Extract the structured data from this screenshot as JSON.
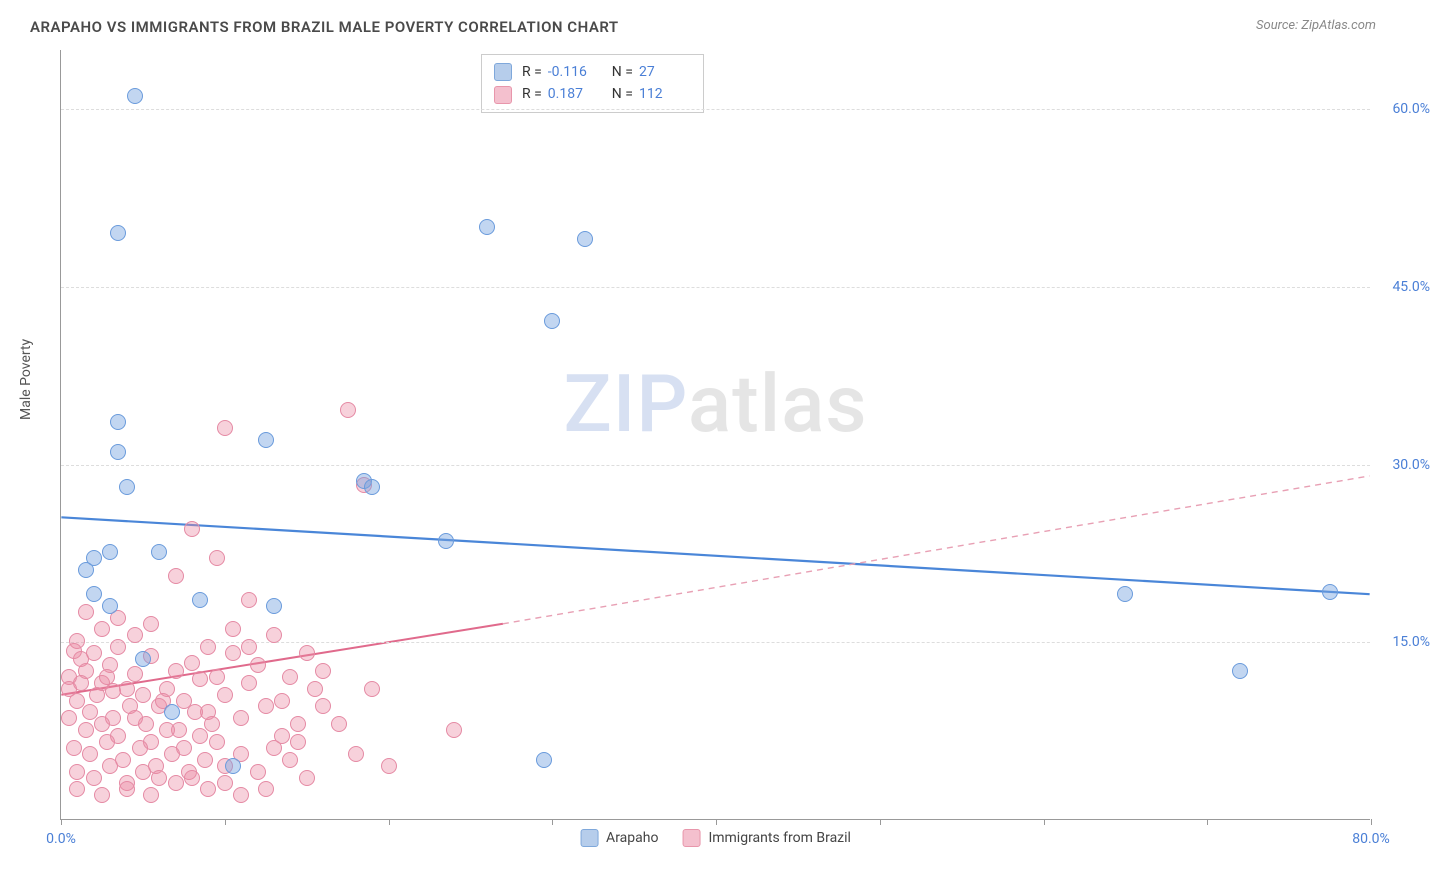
{
  "title": "ARAPAHO VS IMMIGRANTS FROM BRAZIL MALE POVERTY CORRELATION CHART",
  "source": "Source: ZipAtlas.com",
  "y_axis_label": "Male Poverty",
  "watermark_a": "ZIP",
  "watermark_b": "atlas",
  "x_axis": {
    "min": 0,
    "max": 80,
    "label_min": "0.0%",
    "label_max": "80.0%",
    "tick_positions": [
      0,
      10,
      20,
      30,
      40,
      50,
      60,
      70,
      80
    ]
  },
  "y_axis": {
    "min": 0,
    "max": 65,
    "ticks": [
      {
        "v": 15,
        "label": "15.0%"
      },
      {
        "v": 30,
        "label": "30.0%"
      },
      {
        "v": 45,
        "label": "45.0%"
      },
      {
        "v": 60,
        "label": "60.0%"
      }
    ]
  },
  "series": {
    "arapaho": {
      "label": "Arapaho",
      "color_fill": "rgba(120,165,225,0.45)",
      "color_stroke": "#6a9bdc",
      "swatch_fill": "#b6cdeb",
      "swatch_stroke": "#7fa8db",
      "marker_radius": 8,
      "R": "-0.116",
      "N": "27",
      "trend": {
        "x1": 0,
        "y1": 25.5,
        "x2": 80,
        "y2": 19.0,
        "stroke": "#4a86d8",
        "width": 2.2,
        "dash": ""
      },
      "points": [
        [
          4.5,
          61.0
        ],
        [
          3.5,
          49.5
        ],
        [
          26.0,
          50.0
        ],
        [
          32.0,
          49.0
        ],
        [
          30.0,
          42.0
        ],
        [
          3.5,
          33.5
        ],
        [
          3.5,
          31.0
        ],
        [
          12.5,
          32.0
        ],
        [
          18.5,
          28.5
        ],
        [
          19.0,
          28.0
        ],
        [
          4.0,
          28.0
        ],
        [
          2.0,
          22.0
        ],
        [
          3.0,
          22.5
        ],
        [
          1.5,
          21.0
        ],
        [
          6.0,
          22.5
        ],
        [
          23.5,
          23.5
        ],
        [
          2.0,
          19.0
        ],
        [
          3.0,
          18.0
        ],
        [
          8.5,
          18.5
        ],
        [
          13.0,
          18.0
        ],
        [
          5.0,
          13.5
        ],
        [
          6.8,
          9.0
        ],
        [
          10.5,
          4.5
        ],
        [
          65.0,
          19.0
        ],
        [
          77.5,
          19.2
        ],
        [
          72.0,
          12.5
        ],
        [
          29.5,
          5.0
        ]
      ]
    },
    "brazil": {
      "label": "Immigrants from Brazil",
      "color_fill": "rgba(235,140,165,0.40)",
      "color_stroke": "#e58aa4",
      "swatch_fill": "#f4c0ce",
      "swatch_stroke": "#e896ab",
      "marker_radius": 8,
      "R": "0.187",
      "N": "112",
      "trend_solid": {
        "x1": 0,
        "y1": 10.5,
        "x2": 27,
        "y2": 16.5,
        "stroke": "#e06a8c",
        "width": 2.0
      },
      "trend_dash": {
        "x1": 27,
        "y1": 16.5,
        "x2": 80,
        "y2": 29.0,
        "stroke": "#e8a0b4",
        "width": 1.4,
        "dash": "6,5"
      },
      "points": [
        [
          10.0,
          33.0
        ],
        [
          17.5,
          34.5
        ],
        [
          18.5,
          28.2
        ],
        [
          8.0,
          24.5
        ],
        [
          7.0,
          20.5
        ],
        [
          9.5,
          22.0
        ],
        [
          1.0,
          15.0
        ],
        [
          0.8,
          14.2
        ],
        [
          1.2,
          13.5
        ],
        [
          0.5,
          12.0
        ],
        [
          1.5,
          12.5
        ],
        [
          2.0,
          14.0
        ],
        [
          2.5,
          11.5
        ],
        [
          3.0,
          13.0
        ],
        [
          3.5,
          14.5
        ],
        [
          4.0,
          11.0
        ],
        [
          4.5,
          12.2
        ],
        [
          5.0,
          10.5
        ],
        [
          5.5,
          13.8
        ],
        [
          6.0,
          9.5
        ],
        [
          6.5,
          11.0
        ],
        [
          7.0,
          12.5
        ],
        [
          7.5,
          10.0
        ],
        [
          8.0,
          13.2
        ],
        [
          8.5,
          11.8
        ],
        [
          9.0,
          9.0
        ],
        [
          9.5,
          12.0
        ],
        [
          10.0,
          10.5
        ],
        [
          10.5,
          14.0
        ],
        [
          11.0,
          8.5
        ],
        [
          11.5,
          11.5
        ],
        [
          12.0,
          13.0
        ],
        [
          12.5,
          9.5
        ],
        [
          13.0,
          15.5
        ],
        [
          13.5,
          10.0
        ],
        [
          14.0,
          12.0
        ],
        [
          14.5,
          8.0
        ],
        [
          15.0,
          14.0
        ],
        [
          15.5,
          11.0
        ],
        [
          16.0,
          9.5
        ],
        [
          1.0,
          10.0
        ],
        [
          1.8,
          9.0
        ],
        [
          2.2,
          10.5
        ],
        [
          3.2,
          8.5
        ],
        [
          4.2,
          9.5
        ],
        [
          5.2,
          8.0
        ],
        [
          6.2,
          10.0
        ],
        [
          7.2,
          7.5
        ],
        [
          8.2,
          9.0
        ],
        [
          9.2,
          8.0
        ],
        [
          0.5,
          8.5
        ],
        [
          1.5,
          7.5
        ],
        [
          2.5,
          8.0
        ],
        [
          3.5,
          7.0
        ],
        [
          4.5,
          8.5
        ],
        [
          5.5,
          6.5
        ],
        [
          6.5,
          7.5
        ],
        [
          7.5,
          6.0
        ],
        [
          8.5,
          7.0
        ],
        [
          9.5,
          6.5
        ],
        [
          0.8,
          6.0
        ],
        [
          1.8,
          5.5
        ],
        [
          2.8,
          6.5
        ],
        [
          3.8,
          5.0
        ],
        [
          4.8,
          6.0
        ],
        [
          5.8,
          4.5
        ],
        [
          6.8,
          5.5
        ],
        [
          7.8,
          4.0
        ],
        [
          8.8,
          5.0
        ],
        [
          10.0,
          4.5
        ],
        [
          1.0,
          4.0
        ],
        [
          2.0,
          3.5
        ],
        [
          3.0,
          4.5
        ],
        [
          4.0,
          3.0
        ],
        [
          5.0,
          4.0
        ],
        [
          6.0,
          3.5
        ],
        [
          7.0,
          3.0
        ],
        [
          8.0,
          3.5
        ],
        [
          9.0,
          2.5
        ],
        [
          10.0,
          3.0
        ],
        [
          11.0,
          5.5
        ],
        [
          12.0,
          4.0
        ],
        [
          13.0,
          6.0
        ],
        [
          14.0,
          5.0
        ],
        [
          15.0,
          3.5
        ],
        [
          0.5,
          11.0
        ],
        [
          1.2,
          11.5
        ],
        [
          2.8,
          12.0
        ],
        [
          3.2,
          10.8
        ],
        [
          11.5,
          18.5
        ],
        [
          2.5,
          16.0
        ],
        [
          3.5,
          17.0
        ],
        [
          4.5,
          15.5
        ],
        [
          5.5,
          16.5
        ],
        [
          1.5,
          17.5
        ],
        [
          13.5,
          7.0
        ],
        [
          14.5,
          6.5
        ],
        [
          16.0,
          12.5
        ],
        [
          17.0,
          8.0
        ],
        [
          18.0,
          5.5
        ],
        [
          19.0,
          11.0
        ],
        [
          20.0,
          4.5
        ],
        [
          24.0,
          7.5
        ],
        [
          11.0,
          2.0
        ],
        [
          12.5,
          2.5
        ],
        [
          1.0,
          2.5
        ],
        [
          2.5,
          2.0
        ],
        [
          4.0,
          2.5
        ],
        [
          5.5,
          2.0
        ],
        [
          9.0,
          14.5
        ],
        [
          10.5,
          16.0
        ],
        [
          11.5,
          14.5
        ]
      ]
    }
  }
}
